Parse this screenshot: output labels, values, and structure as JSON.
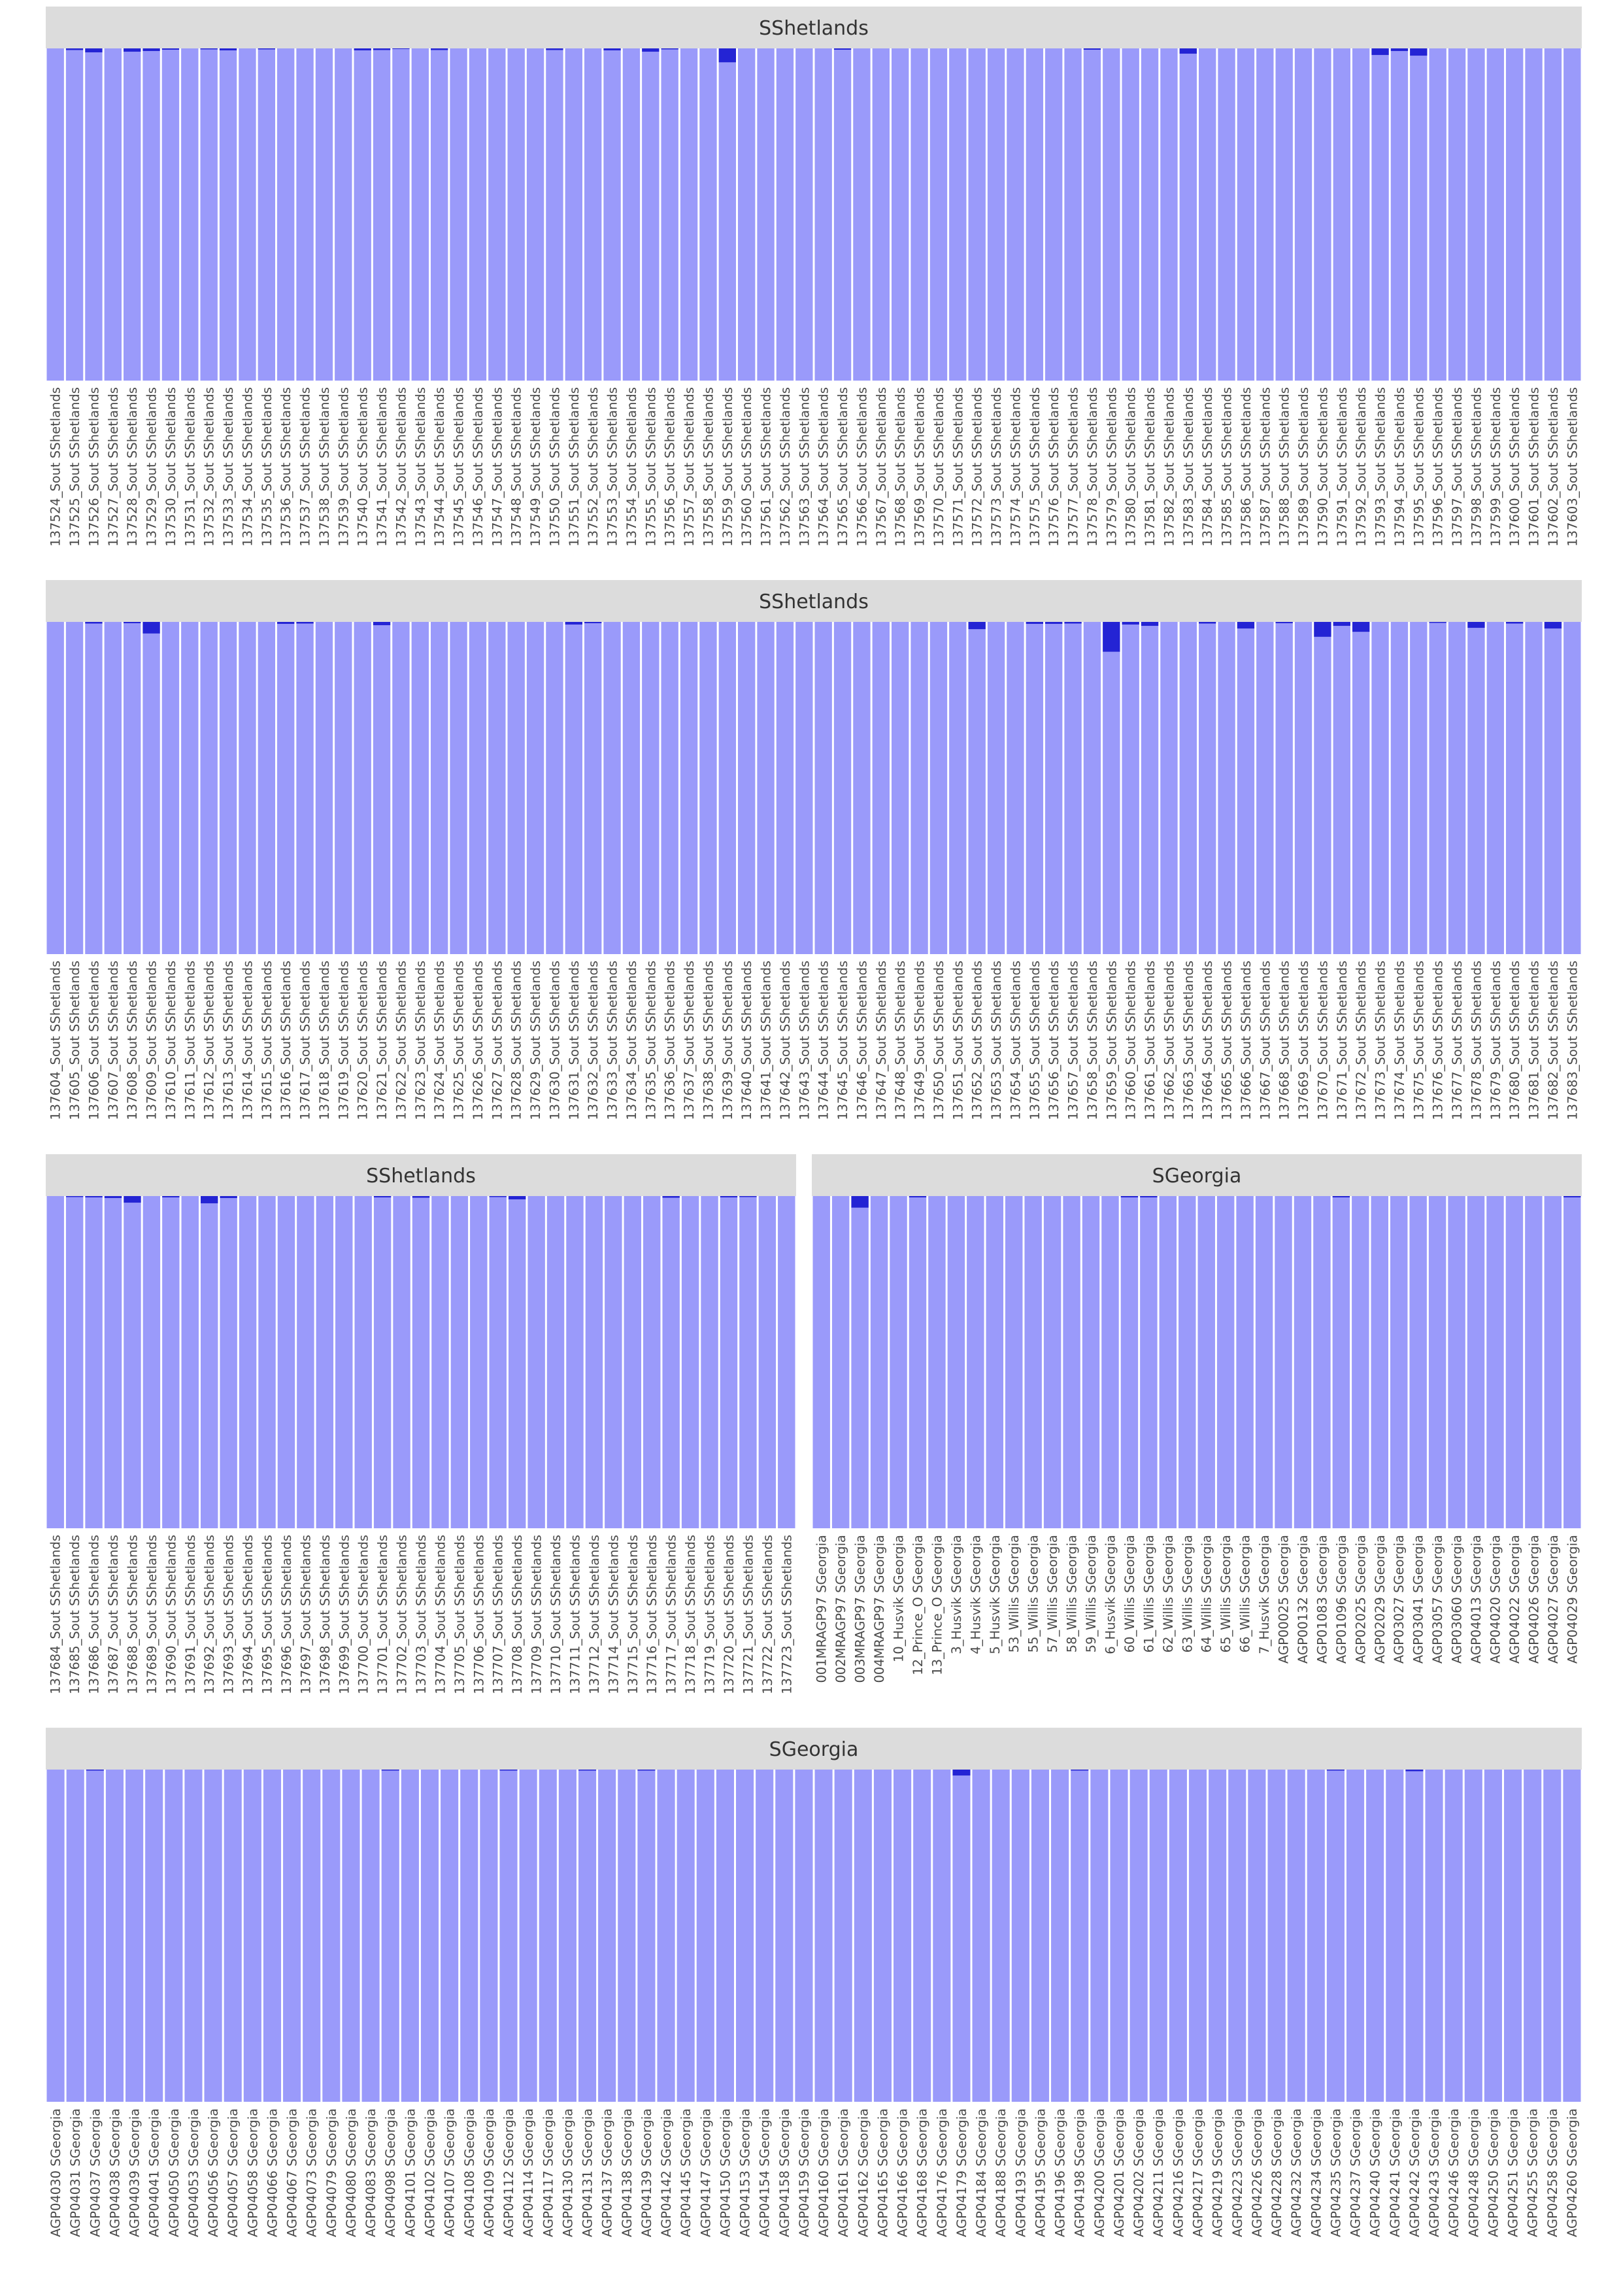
{
  "colors": {
    "ancestry_major": "#9a9afa",
    "ancestry_minor": "#2424d4",
    "strip_bg": "#dcdcdc",
    "strip_text": "#333333"
  },
  "chart_data": [
    {
      "type": "bar",
      "stacked": true,
      "title": "SShetlands",
      "ylim": [
        0,
        1
      ],
      "categories": [
        "137524_Sout SShetlands",
        "137525_Sout SShetlands",
        "137526_Sout SShetlands",
        "137527_Sout SShetlands",
        "137528_Sout SShetlands",
        "137529_Sout SShetlands",
        "137530_Sout SShetlands",
        "137531_Sout SShetlands",
        "137532_Sout SShetlands",
        "137533_Sout SShetlands",
        "137534_Sout SShetlands",
        "137535_Sout SShetlands",
        "137536_Sout SShetlands",
        "137537_Sout SShetlands",
        "137538_Sout SShetlands",
        "137539_Sout SShetlands",
        "137540_Sout SShetlands",
        "137541_Sout SShetlands",
        "137542_Sout SShetlands",
        "137543_Sout SShetlands",
        "137544_Sout SShetlands",
        "137545_Sout SShetlands",
        "137546_Sout SShetlands",
        "137547_Sout SShetlands",
        "137548_Sout SShetlands",
        "137549_Sout SShetlands",
        "137550_Sout SShetlands",
        "137551_Sout SShetlands",
        "137552_Sout SShetlands",
        "137553_Sout SShetlands",
        "137554_Sout SShetlands",
        "137555_Sout SShetlands",
        "137556_Sout SShetlands",
        "137557_Sout SShetlands",
        "137558_Sout SShetlands",
        "137559_Sout SShetlands",
        "137560_Sout SShetlands",
        "137561_Sout SShetlands",
        "137562_Sout SShetlands",
        "137563_Sout SShetlands",
        "137564_Sout SShetlands",
        "137565_Sout SShetlands",
        "137566_Sout SShetlands",
        "137567_Sout SShetlands",
        "137568_Sout SShetlands",
        "137569_Sout SShetlands",
        "137570_Sout SShetlands",
        "137571_Sout SShetlands",
        "137572_Sout SShetlands",
        "137573_Sout SShetlands",
        "137574_Sout SShetlands",
        "137575_Sout SShetlands",
        "137576_Sout SShetlands",
        "137577_Sout SShetlands",
        "137578_Sout SShetlands",
        "137579_Sout SShetlands",
        "137580_Sout SShetlands",
        "137581_Sout SShetlands",
        "137582_Sout SShetlands",
        "137583_Sout SShetlands",
        "137584_Sout SShetlands",
        "137585_Sout SShetlands",
        "137586_Sout SShetlands",
        "137587_Sout SShetlands",
        "137588_Sout SShetlands",
        "137589_Sout SShetlands",
        "137590_Sout SShetlands",
        "137591_Sout SShetlands",
        "137592_Sout SShetlands",
        "137593_Sout SShetlands",
        "137594_Sout SShetlands",
        "137595_Sout SShetlands",
        "137596_Sout SShetlands",
        "137597_Sout SShetlands",
        "137598_Sout SShetlands",
        "137599_Sout SShetlands",
        "137600_Sout SShetlands",
        "137601_Sout SShetlands",
        "137602_Sout SShetlands",
        "137603_Sout SShetlands"
      ],
      "minor_fraction": [
        0,
        0.005,
        0.012,
        0,
        0.01,
        0.008,
        0.004,
        0,
        0.003,
        0.006,
        0,
        0.003,
        0,
        0,
        0,
        0,
        0.006,
        0.005,
        0.002,
        0,
        0.005,
        0,
        0,
        0,
        0,
        0,
        0.005,
        0,
        0,
        0.006,
        0,
        0.01,
        0.003,
        0,
        0,
        0.042,
        0,
        0,
        0,
        0,
        0,
        0.004,
        0,
        0,
        0,
        0,
        0,
        0,
        0,
        0,
        0,
        0,
        0,
        0,
        0.004,
        0,
        0,
        0,
        0,
        0.016,
        0,
        0,
        0,
        0,
        0,
        0,
        0,
        0,
        0,
        0.02,
        0.008,
        0.022,
        0,
        0,
        0,
        0,
        0,
        0,
        0,
        0
      ]
    },
    {
      "type": "bar",
      "stacked": true,
      "title": "SShetlands",
      "ylim": [
        0,
        1
      ],
      "categories": [
        "137604_Sout SShetlands",
        "137605_Sout SShetlands",
        "137606_Sout SShetlands",
        "137607_Sout SShetlands",
        "137608_Sout SShetlands",
        "137609_Sout SShetlands",
        "137610_Sout SShetlands",
        "137611_Sout SShetlands",
        "137612_Sout SShetlands",
        "137613_Sout SShetlands",
        "137614_Sout SShetlands",
        "137615_Sout SShetlands",
        "137616_Sout SShetlands",
        "137617_Sout SShetlands",
        "137618_Sout SShetlands",
        "137619_Sout SShetlands",
        "137620_Sout SShetlands",
        "137621_Sout SShetlands",
        "137622_Sout SShetlands",
        "137623_Sout SShetlands",
        "137624_Sout SShetlands",
        "137625_Sout SShetlands",
        "137626_Sout SShetlands",
        "137627_Sout SShetlands",
        "137628_Sout SShetlands",
        "137629_Sout SShetlands",
        "137630_Sout SShetlands",
        "137631_Sout SShetlands",
        "137632_Sout SShetlands",
        "137633_Sout SShetlands",
        "137634_Sout SShetlands",
        "137635_Sout SShetlands",
        "137636_Sout SShetlands",
        "137637_Sout SShetlands",
        "137638_Sout SShetlands",
        "137639_Sout SShetlands",
        "137640_Sout SShetlands",
        "137641_Sout SShetlands",
        "137642_Sout SShetlands",
        "137643_Sout SShetlands",
        "137644_Sout SShetlands",
        "137645_Sout SShetlands",
        "137646_Sout SShetlands",
        "137647_Sout SShetlands",
        "137648_Sout SShetlands",
        "137649_Sout SShetlands",
        "137650_Sout SShetlands",
        "137651_Sout SShetlands",
        "137652_Sout SShetlands",
        "137653_Sout SShetlands",
        "137654_Sout SShetlands",
        "137655_Sout SShetlands",
        "137656_Sout SShetlands",
        "137657_Sout SShetlands",
        "137658_Sout SShetlands",
        "137659_Sout SShetlands",
        "137660_Sout SShetlands",
        "137661_Sout SShetlands",
        "137662_Sout SShetlands",
        "137663_Sout SShetlands",
        "137664_Sout SShetlands",
        "137665_Sout SShetlands",
        "137666_Sout SShetlands",
        "137667_Sout SShetlands",
        "137668_Sout SShetlands",
        "137669_Sout SShetlands",
        "137670_Sout SShetlands",
        "137671_Sout SShetlands",
        "137672_Sout SShetlands",
        "137673_Sout SShetlands",
        "137674_Sout SShetlands",
        "137675_Sout SShetlands",
        "137676_Sout SShetlands",
        "137677_Sout SShetlands",
        "137678_Sout SShetlands",
        "137679_Sout SShetlands",
        "137680_Sout SShetlands",
        "137681_Sout SShetlands",
        "137682_Sout SShetlands",
        "137683_Sout SShetlands"
      ],
      "minor_fraction": [
        0,
        0,
        0.005,
        0,
        0.004,
        0.035,
        0,
        0,
        0,
        0,
        0,
        0,
        0.006,
        0.005,
        0,
        0,
        0,
        0.01,
        0,
        0,
        0,
        0,
        0,
        0,
        0,
        0,
        0,
        0.008,
        0.004,
        0,
        0,
        0,
        0,
        0,
        0,
        0,
        0,
        0,
        0,
        0,
        0,
        0,
        0,
        0,
        0,
        0,
        0,
        0,
        0.022,
        0,
        0,
        0.006,
        0.006,
        0.005,
        0,
        0.09,
        0.008,
        0.012,
        0,
        0,
        0.005,
        0,
        0.02,
        0,
        0.004,
        0,
        0.045,
        0.012,
        0.03,
        0,
        0,
        0,
        0.003,
        0,
        0.018,
        0,
        0.005,
        0,
        0.02,
        0
      ]
    },
    {
      "type": "bar",
      "stacked": true,
      "title": "SShetlands",
      "ylim": [
        0,
        1
      ],
      "categories": [
        "137684_Sout SShetlands",
        "137685_Sout SShetlands",
        "137686_Sout SShetlands",
        "137687_Sout SShetlands",
        "137688_Sout SShetlands",
        "137689_Sout SShetlands",
        "137690_Sout SShetlands",
        "137691_Sout SShetlands",
        "137692_Sout SShetlands",
        "137693_Sout SShetlands",
        "137694_Sout SShetlands",
        "137695_Sout SShetlands",
        "137696_Sout SShetlands",
        "137697_Sout SShetlands",
        "137698_Sout SShetlands",
        "137699_Sout SShetlands",
        "137700_Sout SShetlands",
        "137701_Sout SShetlands",
        "137702_Sout SShetlands",
        "137703_Sout SShetlands",
        "137704_Sout SShetlands",
        "137705_Sout SShetlands",
        "137706_Sout SShetlands",
        "137707_Sout SShetlands",
        "137708_Sout SShetlands",
        "137709_Sout SShetlands",
        "137710_Sout SShetlands",
        "137711_Sout SShetlands",
        "137712_Sout SShetlands",
        "137714_Sout SShetlands",
        "137715_Sout SShetlands",
        "137716_Sout SShetlands",
        "137717_Sout SShetlands",
        "137718_Sout SShetlands",
        "137719_Sout SShetlands",
        "137720_Sout SShetlands",
        "137721_Sout SShetlands",
        "137722_Sout SShetlands",
        "137723_Sout SShetlands"
      ],
      "minor_fraction": [
        0,
        0.003,
        0.004,
        0.006,
        0.02,
        0,
        0.004,
        0,
        0.022,
        0.006,
        0,
        0,
        0,
        0,
        0,
        0,
        0,
        0.004,
        0,
        0.005,
        0,
        0,
        0,
        0.003,
        0.01,
        0,
        0,
        0,
        0,
        0,
        0,
        0,
        0.005,
        0,
        0,
        0.004,
        0.003,
        0,
        0
      ]
    },
    {
      "type": "bar",
      "stacked": true,
      "title": "SGeorgia",
      "ylim": [
        0,
        1
      ],
      "categories": [
        "001MRAGP97 SGeorgia",
        "002MRAGP97 SGeorgia",
        "003MRAGP97 SGeorgia",
        "004MRAGP97 SGeorgia",
        "10_Husvik SGeorgia",
        "12_Prince_O SGeorgia",
        "13_Prince_O SGeorgia",
        "3_Husvik SGeorgia",
        "4_Husvik SGeorgia",
        "5_Husvik SGeorgia",
        "53_Willis SGeorgia",
        "55_Willis SGeorgia",
        "57_Willis SGeorgia",
        "58_Willis SGeorgia",
        "59_Willis SGeorgia",
        "6_Husvik SGeorgia",
        "60_Willis SGeorgia",
        "61_Willis SGeorgia",
        "62_Willis SGeorgia",
        "63_Willis SGeorgia",
        "64_Willis SGeorgia",
        "65_Willis SGeorgia",
        "66_Willis SGeorgia",
        "7_Husvik SGeorgia",
        "AGP00025 SGeorgia",
        "AGP00132 SGeorgia",
        "AGP01083 SGeorgia",
        "AGP01096 SGeorgia",
        "AGP02025 SGeorgia",
        "AGP02029 SGeorgia",
        "AGP03027 SGeorgia",
        "AGP03041 SGeorgia",
        "AGP03057 SGeorgia",
        "AGP03060 SGeorgia",
        "AGP04013 SGeorgia",
        "AGP04020 SGeorgia",
        "AGP04022 SGeorgia",
        "AGP04026 SGeorgia",
        "AGP04027 SGeorgia",
        "AGP04029 SGeorgia"
      ],
      "minor_fraction": [
        0,
        0,
        0.035,
        0,
        0,
        0.004,
        0,
        0,
        0,
        0,
        0,
        0,
        0,
        0,
        0,
        0,
        0.004,
        0.004,
        0,
        0,
        0,
        0,
        0,
        0,
        0,
        0,
        0,
        0.004,
        0,
        0,
        0,
        0,
        0,
        0,
        0,
        0,
        0,
        0,
        0,
        0.004
      ]
    },
    {
      "type": "bar",
      "stacked": true,
      "title": "SGeorgia",
      "ylim": [
        0,
        1
      ],
      "categories": [
        "AGP04030 SGeorgia",
        "AGP04031 SGeorgia",
        "AGP04037 SGeorgia",
        "AGP04038 SGeorgia",
        "AGP04039 SGeorgia",
        "AGP04041 SGeorgia",
        "AGP04050 SGeorgia",
        "AGP04053 SGeorgia",
        "AGP04056 SGeorgia",
        "AGP04057 SGeorgia",
        "AGP04058 SGeorgia",
        "AGP04066 SGeorgia",
        "AGP04067 SGeorgia",
        "AGP04073 SGeorgia",
        "AGP04079 SGeorgia",
        "AGP04080 SGeorgia",
        "AGP04083 SGeorgia",
        "AGP04098 SGeorgia",
        "AGP04101 SGeorgia",
        "AGP04102 SGeorgia",
        "AGP04107 SGeorgia",
        "AGP04108 SGeorgia",
        "AGP04109 SGeorgia",
        "AGP04112 SGeorgia",
        "AGP04114 SGeorgia",
        "AGP04117 SGeorgia",
        "AGP04130 SGeorgia",
        "AGP04131 SGeorgia",
        "AGP04137 SGeorgia",
        "AGP04138 SGeorgia",
        "AGP04139 SGeorgia",
        "AGP04142 SGeorgia",
        "AGP04145 SGeorgia",
        "AGP04147 SGeorgia",
        "AGP04150 SGeorgia",
        "AGP04153 SGeorgia",
        "AGP04154 SGeorgia",
        "AGP04158 SGeorgia",
        "AGP04159 SGeorgia",
        "AGP04160 SGeorgia",
        "AGP04161 SGeorgia",
        "AGP04162 SGeorgia",
        "AGP04165 SGeorgia",
        "AGP04166 SGeorgia",
        "AGP04168 SGeorgia",
        "AGP04176 SGeorgia",
        "AGP04179 SGeorgia",
        "AGP04184 SGeorgia",
        "AGP04188 SGeorgia",
        "AGP04193 SGeorgia",
        "AGP04195 SGeorgia",
        "AGP04196 SGeorgia",
        "AGP04198 SGeorgia",
        "AGP04200 SGeorgia",
        "AGP04201 SGeorgia",
        "AGP04202 SGeorgia",
        "AGP04211 SGeorgia",
        "AGP04216 SGeorgia",
        "AGP04217 SGeorgia",
        "AGP04219 SGeorgia",
        "AGP04223 SGeorgia",
        "AGP04226 SGeorgia",
        "AGP04228 SGeorgia",
        "AGP04232 SGeorgia",
        "AGP04234 SGeorgia",
        "AGP04235 SGeorgia",
        "AGP04237 SGeorgia",
        "AGP04240 SGeorgia",
        "AGP04241 SGeorgia",
        "AGP04242 SGeorgia",
        "AGP04243 SGeorgia",
        "AGP04246 SGeorgia",
        "AGP04248 SGeorgia",
        "AGP04250 SGeorgia",
        "AGP04251 SGeorgia",
        "AGP04255 SGeorgia",
        "AGP04258 SGeorgia",
        "AGP04260 SGeorgia"
      ],
      "minor_fraction": [
        0,
        0,
        0.003,
        0,
        0,
        0,
        0,
        0,
        0,
        0,
        0,
        0,
        0,
        0,
        0,
        0,
        0,
        0.003,
        0,
        0,
        0,
        0,
        0,
        0.003,
        0,
        0,
        0,
        0.003,
        0,
        0,
        0.003,
        0,
        0,
        0,
        0,
        0,
        0,
        0,
        0,
        0,
        0,
        0,
        0,
        0,
        0,
        0,
        0.018,
        0,
        0,
        0,
        0,
        0,
        0.003,
        0,
        0,
        0,
        0,
        0,
        0,
        0,
        0,
        0,
        0,
        0,
        0,
        0.003,
        0,
        0,
        0,
        0.005,
        0,
        0,
        0,
        0,
        0,
        0,
        0,
        0
      ]
    }
  ]
}
